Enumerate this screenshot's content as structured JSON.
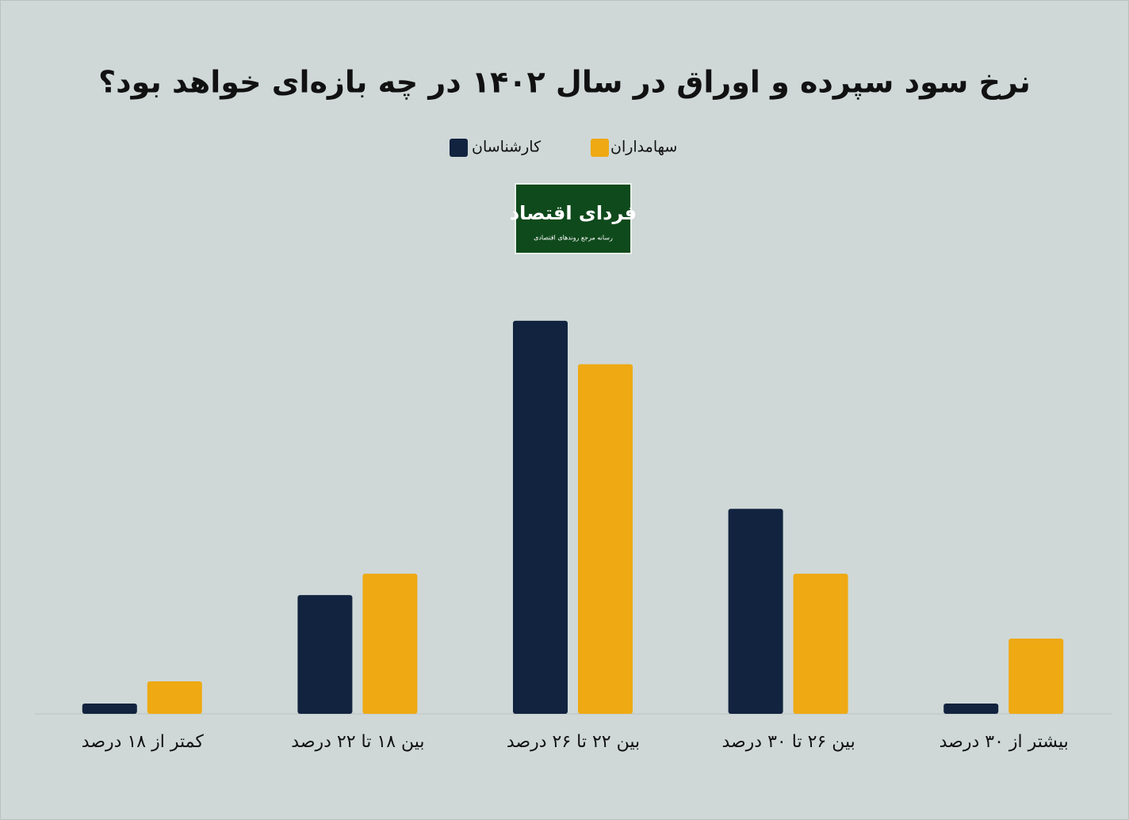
{
  "chart_data": {
    "type": "bar",
    "title": "نرخ سود سپرده و اوراق در سال ۱۴۰۲ در چه بازه‌ای خواهد بود؟",
    "logo": {
      "title": "فردای اقتصاد",
      "subtitle": "رسانه مرجع روندهای اقتصادی"
    },
    "categories": [
      "کمتر از ۱۸ درصد",
      "بین ۱۸ تا ۲۲ درصد",
      "بین ۲۲ تا ۲۶ درصد",
      "بین ۲۶ تا ۳۰ درصد",
      "بیشتر از ۳۰ درصد"
    ],
    "series": [
      {
        "name": "کارشناسان",
        "color": "#11233f",
        "values": [
          1.4,
          16.1,
          53.3,
          27.8,
          1.4
        ]
      },
      {
        "name": "سهامداران",
        "color": "#eea913",
        "values": [
          4.4,
          19,
          47.4,
          19,
          10.2
        ]
      }
    ],
    "ylim": [
      0,
      55
    ]
  }
}
